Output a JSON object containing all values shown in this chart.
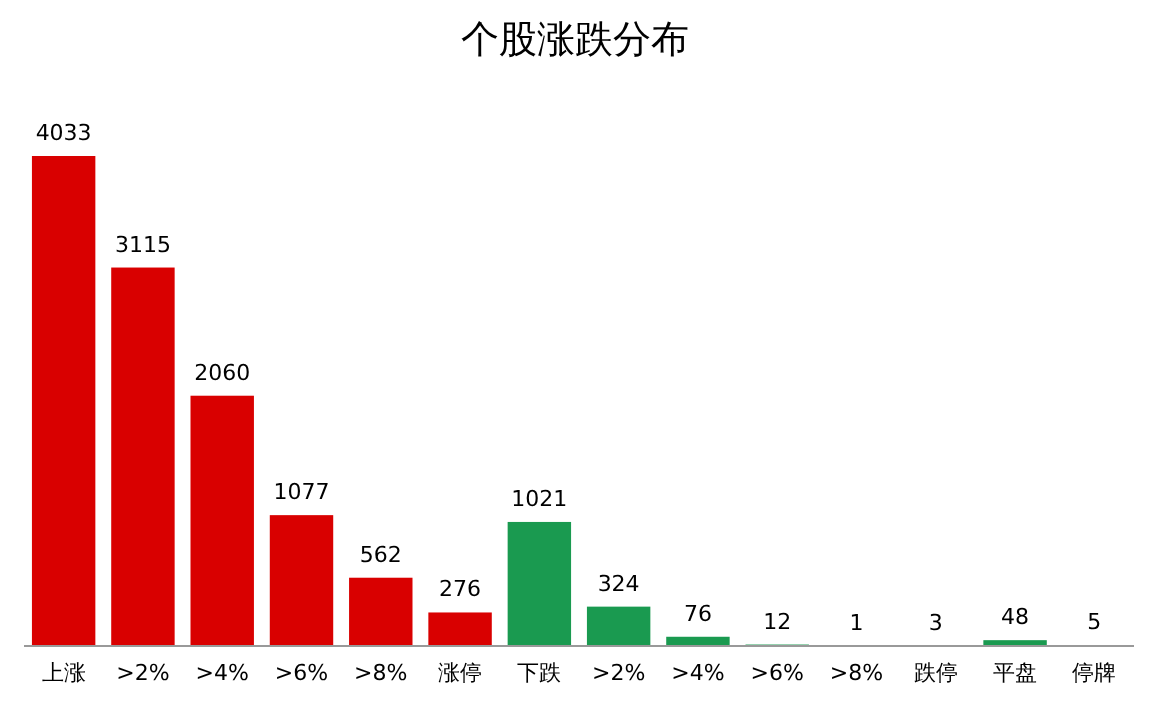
{
  "chart_data": {
    "type": "bar",
    "title": "个股涨跌分布",
    "categories": [
      "上涨",
      ">2%",
      ">4%",
      ">6%",
      ">8%",
      "涨停",
      "下跌",
      ">2%",
      ">4%",
      ">6%",
      ">8%",
      "跌停",
      "平盘",
      "停牌"
    ],
    "values": [
      4033,
      3115,
      2060,
      1077,
      562,
      276,
      1021,
      324,
      76,
      12,
      1,
      3,
      48,
      5
    ],
    "colors": [
      "#d90000",
      "#d90000",
      "#d90000",
      "#d90000",
      "#d90000",
      "#d90000",
      "#1a9a50",
      "#1a9a50",
      "#1a9a50",
      "#1a9a50",
      "#1a9a50",
      "#1a9a50",
      "#1a9a50",
      "#1a9a50"
    ],
    "data_labels": true
  }
}
